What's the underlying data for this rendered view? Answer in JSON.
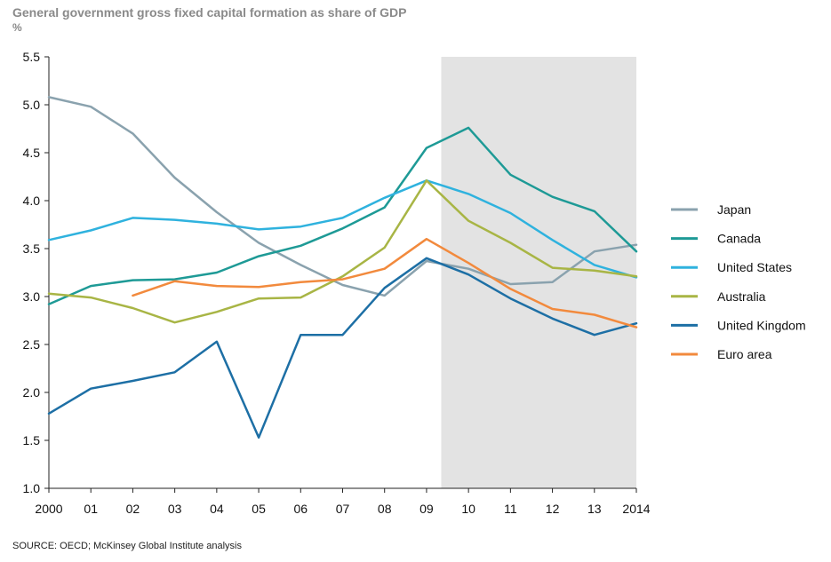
{
  "title": "General government gross fixed capital formation as share of GDP",
  "unit": "%",
  "source": "SOURCE: OECD; McKinsey Global Institute analysis",
  "chart_data": {
    "type": "line",
    "x_tick_labels": [
      "2000",
      "01",
      "02",
      "03",
      "04",
      "05",
      "06",
      "07",
      "08",
      "09",
      "10",
      "11",
      "12",
      "13",
      "2014"
    ],
    "x": [
      2000,
      2001,
      2002,
      2003,
      2004,
      2005,
      2006,
      2007,
      2008,
      2009,
      2010,
      2011,
      2012,
      2013,
      2014
    ],
    "ylim": [
      1.0,
      5.5
    ],
    "y_ticks": [
      "1.0",
      "1.5",
      "2.0",
      "2.5",
      "3.0",
      "3.5",
      "4.0",
      "4.5",
      "5.0",
      "5.5"
    ],
    "shaded_region": {
      "from": 2009.35,
      "to": 2014
    },
    "series": [
      {
        "name": "Japan",
        "color": "#8aa2ae",
        "values": [
          5.08,
          4.98,
          4.7,
          4.24,
          3.88,
          3.56,
          3.33,
          3.12,
          3.01,
          3.37,
          3.29,
          3.13,
          3.15,
          3.47,
          3.54
        ]
      },
      {
        "name": "Canada",
        "color": "#1e9a96",
        "values": [
          2.92,
          3.11,
          3.17,
          3.18,
          3.25,
          3.42,
          3.53,
          3.71,
          3.93,
          4.55,
          4.76,
          4.27,
          4.04,
          3.89,
          3.47
        ]
      },
      {
        "name": "United States",
        "color": "#2fb2de",
        "values": [
          3.59,
          3.69,
          3.82,
          3.8,
          3.76,
          3.7,
          3.73,
          3.82,
          4.03,
          4.21,
          4.07,
          3.87,
          3.59,
          3.33,
          3.2
        ]
      },
      {
        "name": "Australia",
        "color": "#a8b545",
        "values": [
          3.03,
          2.99,
          2.88,
          2.73,
          2.84,
          2.98,
          2.99,
          3.21,
          3.51,
          4.21,
          3.79,
          3.56,
          3.3,
          3.27,
          3.21
        ]
      },
      {
        "name": "United Kingdom",
        "color": "#1d6fa5",
        "values": [
          1.78,
          2.04,
          2.12,
          2.21,
          2.53,
          1.53,
          2.6,
          2.6,
          3.09,
          3.4,
          3.23,
          2.98,
          2.77,
          2.6,
          2.72
        ]
      },
      {
        "name": "Euro area",
        "color": "#f28a3d",
        "values": [
          null,
          null,
          3.01,
          3.16,
          3.11,
          3.1,
          3.15,
          3.18,
          3.29,
          3.6,
          3.35,
          3.08,
          2.87,
          2.81,
          2.68
        ]
      }
    ],
    "legend_position": "right"
  }
}
